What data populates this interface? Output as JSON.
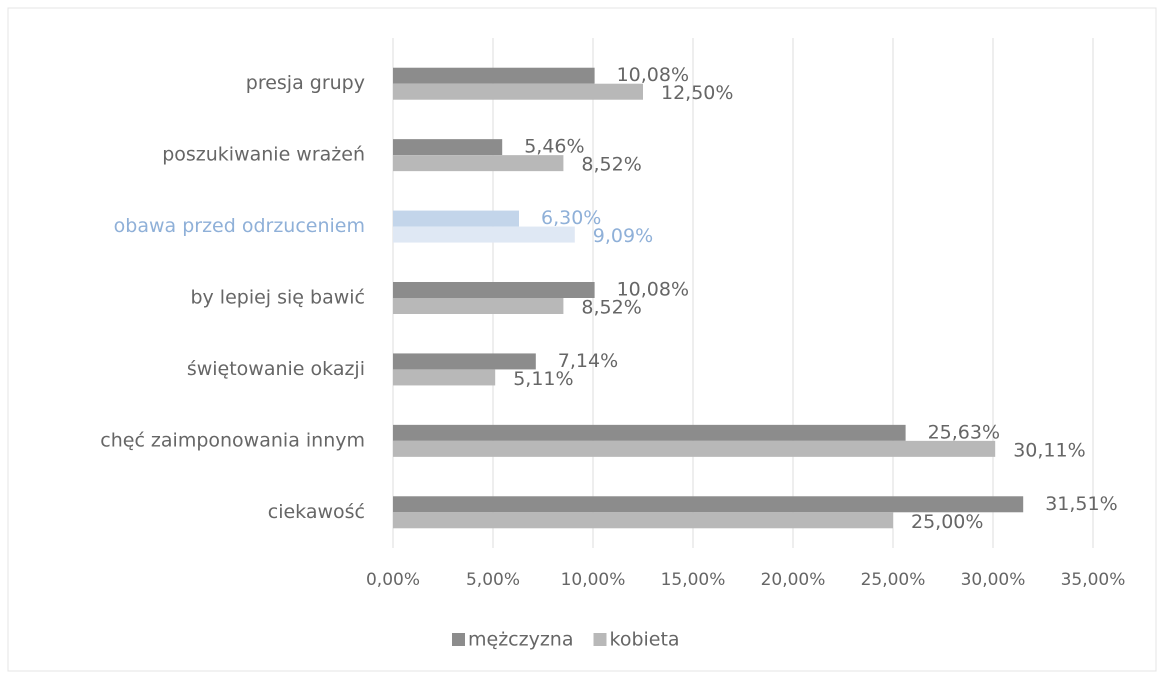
{
  "chart_data": {
    "type": "bar",
    "orientation": "horizontal",
    "categories": [
      "presja grupy",
      "poszukiwanie wrażeń",
      "obawa przed odrzuceniem",
      "by lepiej się bawić",
      "świętowanie okazji",
      "chęć zaimponowania innym",
      "ciekawość"
    ],
    "series": [
      {
        "name": "mężczyzna",
        "color": "#8c8c8c",
        "values": [
          10.08,
          5.46,
          6.3,
          10.08,
          7.14,
          25.63,
          31.51
        ],
        "value_labels": [
          "10,08%",
          "5,46%",
          "6,30%",
          "10,08%",
          "7,14%",
          "25,63%",
          "31,51%"
        ]
      },
      {
        "name": "kobieta",
        "color": "#b8b8b8",
        "values": [
          12.5,
          8.52,
          9.09,
          8.52,
          5.11,
          30.11,
          25.0
        ],
        "value_labels": [
          "12,50%",
          "8,52%",
          "9,09%",
          "8,52%",
          "5,11%",
          "30,11%",
          "25,00%"
        ]
      }
    ],
    "highlight": {
      "index": 2,
      "colors": [
        "#c3d5ea",
        "#dfe8f4"
      ],
      "label_color": "#8fb0d8"
    },
    "xlim": [
      0,
      35
    ],
    "xticks": [
      {
        "value": 0,
        "label": "0,00%"
      },
      {
        "value": 5,
        "label": "5,00%"
      },
      {
        "value": 10,
        "label": "10,00%"
      },
      {
        "value": 15,
        "label": "15,00%"
      },
      {
        "value": 20,
        "label": "20,00%"
      },
      {
        "value": 25,
        "label": "25,00%"
      },
      {
        "value": 30,
        "label": "30,00%"
      },
      {
        "value": 35,
        "label": "35,00%"
      }
    ],
    "grid": true,
    "legend": "bottom"
  }
}
